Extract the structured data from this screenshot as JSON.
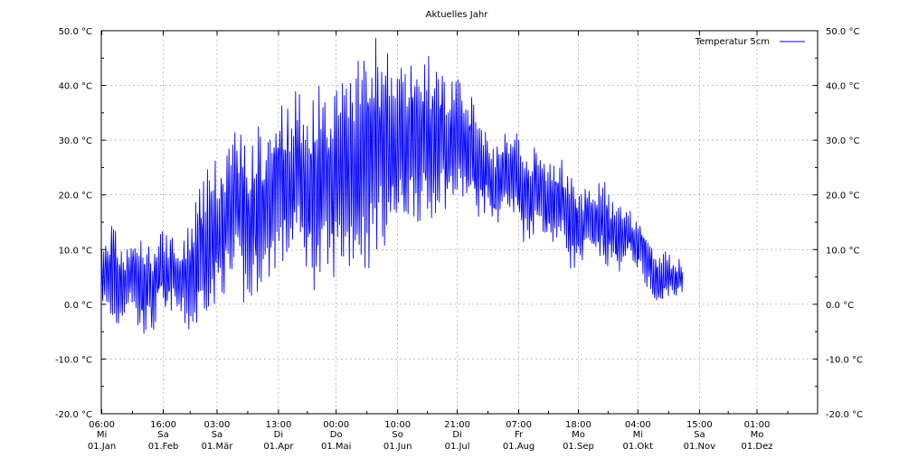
{
  "chart_data": {
    "type": "line",
    "title": "Aktuelles Jahr",
    "xlabel": "",
    "ylabel": "",
    "ylim": [
      -20,
      50
    ],
    "y_ticks": [
      "-20.0 °C",
      "-10.0 °C",
      "0.0 °C",
      "10.0 °C",
      "20.0 °C",
      "30.0 °C",
      "40.0 °C",
      "50.0 °C"
    ],
    "y_tick_values": [
      -20,
      -10,
      0,
      10,
      20,
      30,
      40,
      50
    ],
    "x_ticks": [
      {
        "time": "06:00",
        "day": "Mi",
        "date": "01.Jan"
      },
      {
        "time": "16:00",
        "day": "Sa",
        "date": "01.Feb"
      },
      {
        "time": "03:00",
        "day": "Sa",
        "date": "01.Mär"
      },
      {
        "time": "13:00",
        "day": "Di",
        "date": "01.Apr"
      },
      {
        "time": "00:00",
        "day": "Do",
        "date": "01.Mai"
      },
      {
        "time": "10:00",
        "day": "So",
        "date": "01.Jun"
      },
      {
        "time": "21:00",
        "day": "Di",
        "date": "01.Jul"
      },
      {
        "time": "07:00",
        "day": "Fr",
        "date": "01.Aug"
      },
      {
        "time": "18:00",
        "day": "Mo",
        "date": "01.Sep"
      },
      {
        "time": "04:00",
        "day": "Mi",
        "date": "01.Okt"
      },
      {
        "time": "15:00",
        "day": "Sa",
        "date": "01.Nov"
      },
      {
        "time": "01:00",
        "day": "Mo",
        "date": "01.Dez"
      }
    ],
    "x_tick_day_of_year": [
      0.25,
      31.67,
      59.13,
      90.54,
      120.0,
      151.42,
      181.88,
      213.29,
      243.75,
      274.17,
      305.63,
      335.04
    ],
    "x_range_days": [
      0,
      366
    ],
    "grid": true,
    "legend": "top-right",
    "series": [
      {
        "name": "Temperatur 5cm",
        "color": "#0000ff",
        "x_day_step": 3,
        "envelope_low": [
          1,
          -3,
          -6,
          -5,
          -2,
          1,
          -5,
          -6,
          -5,
          -6,
          0,
          -4,
          -1,
          -2,
          -4,
          -6,
          -6,
          -3,
          -1,
          -3,
          1,
          2,
          1,
          4,
          0,
          -3,
          1,
          3,
          3,
          5,
          7,
          6,
          8,
          11,
          7,
          6,
          3,
          1,
          5,
          3,
          6,
          6,
          5,
          7,
          7,
          5,
          7,
          10,
          10,
          12,
          13,
          13,
          15,
          16,
          15,
          13,
          13,
          17,
          18,
          17,
          18,
          18,
          19,
          17,
          16,
          16,
          18,
          13,
          16,
          17,
          15,
          15,
          11,
          12,
          13,
          14,
          11,
          11,
          11,
          10,
          6,
          6,
          7,
          9,
          7,
          8,
          6,
          7,
          6,
          6,
          9,
          7,
          4,
          3,
          0,
          -2,
          1,
          2,
          1,
          2
        ],
        "envelope_high": [
          10,
          14,
          16,
          11,
          9,
          12,
          13,
          12,
          11,
          12,
          13,
          14,
          13,
          10,
          12,
          15,
          21,
          22,
          25,
          26,
          27,
          28,
          31,
          33,
          34,
          27,
          32,
          34,
          30,
          35,
          38,
          37,
          37,
          41,
          38,
          40,
          38,
          42,
          39,
          38,
          41,
          43,
          45,
          45,
          47,
          46,
          47,
          50,
          45,
          47,
          45,
          45,
          43,
          46,
          43,
          47,
          45,
          44,
          45,
          41,
          42,
          41,
          38,
          39,
          37,
          35,
          31,
          30,
          33,
          31,
          31,
          33,
          27,
          28,
          29,
          28,
          26,
          27,
          27,
          26,
          25,
          22,
          21,
          23,
          22,
          24,
          22,
          19,
          19,
          17,
          18,
          16,
          16,
          13,
          11,
          10,
          10,
          9,
          8,
          9
        ],
        "envelope_mid": [
          5,
          5,
          6,
          3,
          4,
          6,
          4,
          3,
          3,
          3,
          7,
          5,
          6,
          4,
          4,
          5,
          7,
          10,
          12,
          12,
          14,
          15,
          16,
          18,
          17,
          12,
          16,
          18,
          16,
          20,
          22,
          21,
          22,
          26,
          22,
          23,
          20,
          21,
          22,
          20,
          23,
          24,
          25,
          26,
          27,
          25,
          27,
          30,
          27,
          29,
          29,
          29,
          29,
          31,
          29,
          30,
          29,
          30,
          31,
          29,
          30,
          29,
          28,
          28,
          26,
          25,
          24,
          21,
          24,
          24,
          23,
          24,
          19,
          20,
          21,
          21,
          18,
          19,
          19,
          18,
          15,
          14,
          14,
          16,
          14,
          16,
          14,
          13,
          12,
          11,
          13,
          11,
          10,
          8,
          5,
          4,
          5,
          5,
          4,
          5
        ]
      }
    ]
  }
}
